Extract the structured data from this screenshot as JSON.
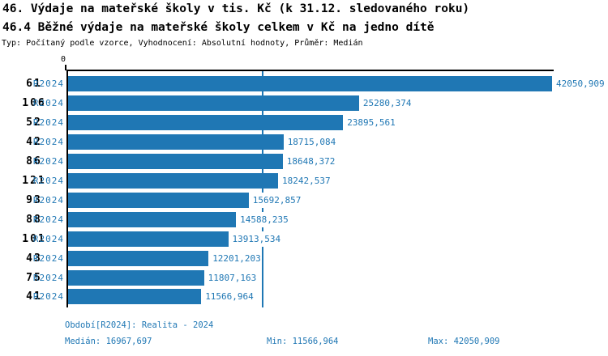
{
  "header": {
    "title_line1": "46. Výdaje na mateřské školy v tis. Kč (k 31.12. sledovaného roku)",
    "title_line2": "46.4 Běžné výdaje na mateřské školy celkem v Kč na jedno dítě",
    "meta_line": "Typ: Počítaný podle vzorce, Vyhodnocení: Absolutní hodnoty, Průměr: Medián"
  },
  "colors": {
    "bar": "#1f77b4",
    "blue_text": "#1f77b4",
    "median_line": "#1f77b4",
    "axis": "#000000",
    "title_text": "#000000"
  },
  "chart_data": {
    "type": "bar",
    "orientation": "horizontal",
    "title": "46. Výdaje na mateřské školy v tis. Kč (k 31.12. sledovaného roku)",
    "subtitle": "46.4 Běžné výdaje na mateřské školy celkem v Kč na jedno dítě",
    "xlabel": "",
    "ylabel": "",
    "xlim": [
      0,
      42050.909
    ],
    "x_origin_tick_label": "0",
    "grid": false,
    "series_name": "R2024",
    "categories": [
      "61",
      "106",
      "52",
      "42",
      "86",
      "121",
      "93",
      "88",
      "101",
      "43",
      "75",
      "41"
    ],
    "values": [
      42050.909,
      25280.374,
      23895.561,
      18715.084,
      18648.372,
      18242.537,
      15692.857,
      14588.235,
      13913.534,
      12201.203,
      11807.163,
      11566.964
    ],
    "value_labels": [
      "42050,909",
      "25280,374",
      "23895,561",
      "18715,084",
      "18648,372",
      "18242,537",
      "15692,857",
      "14588,235",
      "13913,534",
      "12201,203",
      "11807,163",
      "11566,964"
    ],
    "median": 16967.697,
    "median_line_shown": true
  },
  "footer": {
    "period": "Období[R2024]: Realita - 2024",
    "median": "Medián: 16967,697",
    "min": "Min: 11566,964",
    "max": "Max: 42050,909"
  }
}
